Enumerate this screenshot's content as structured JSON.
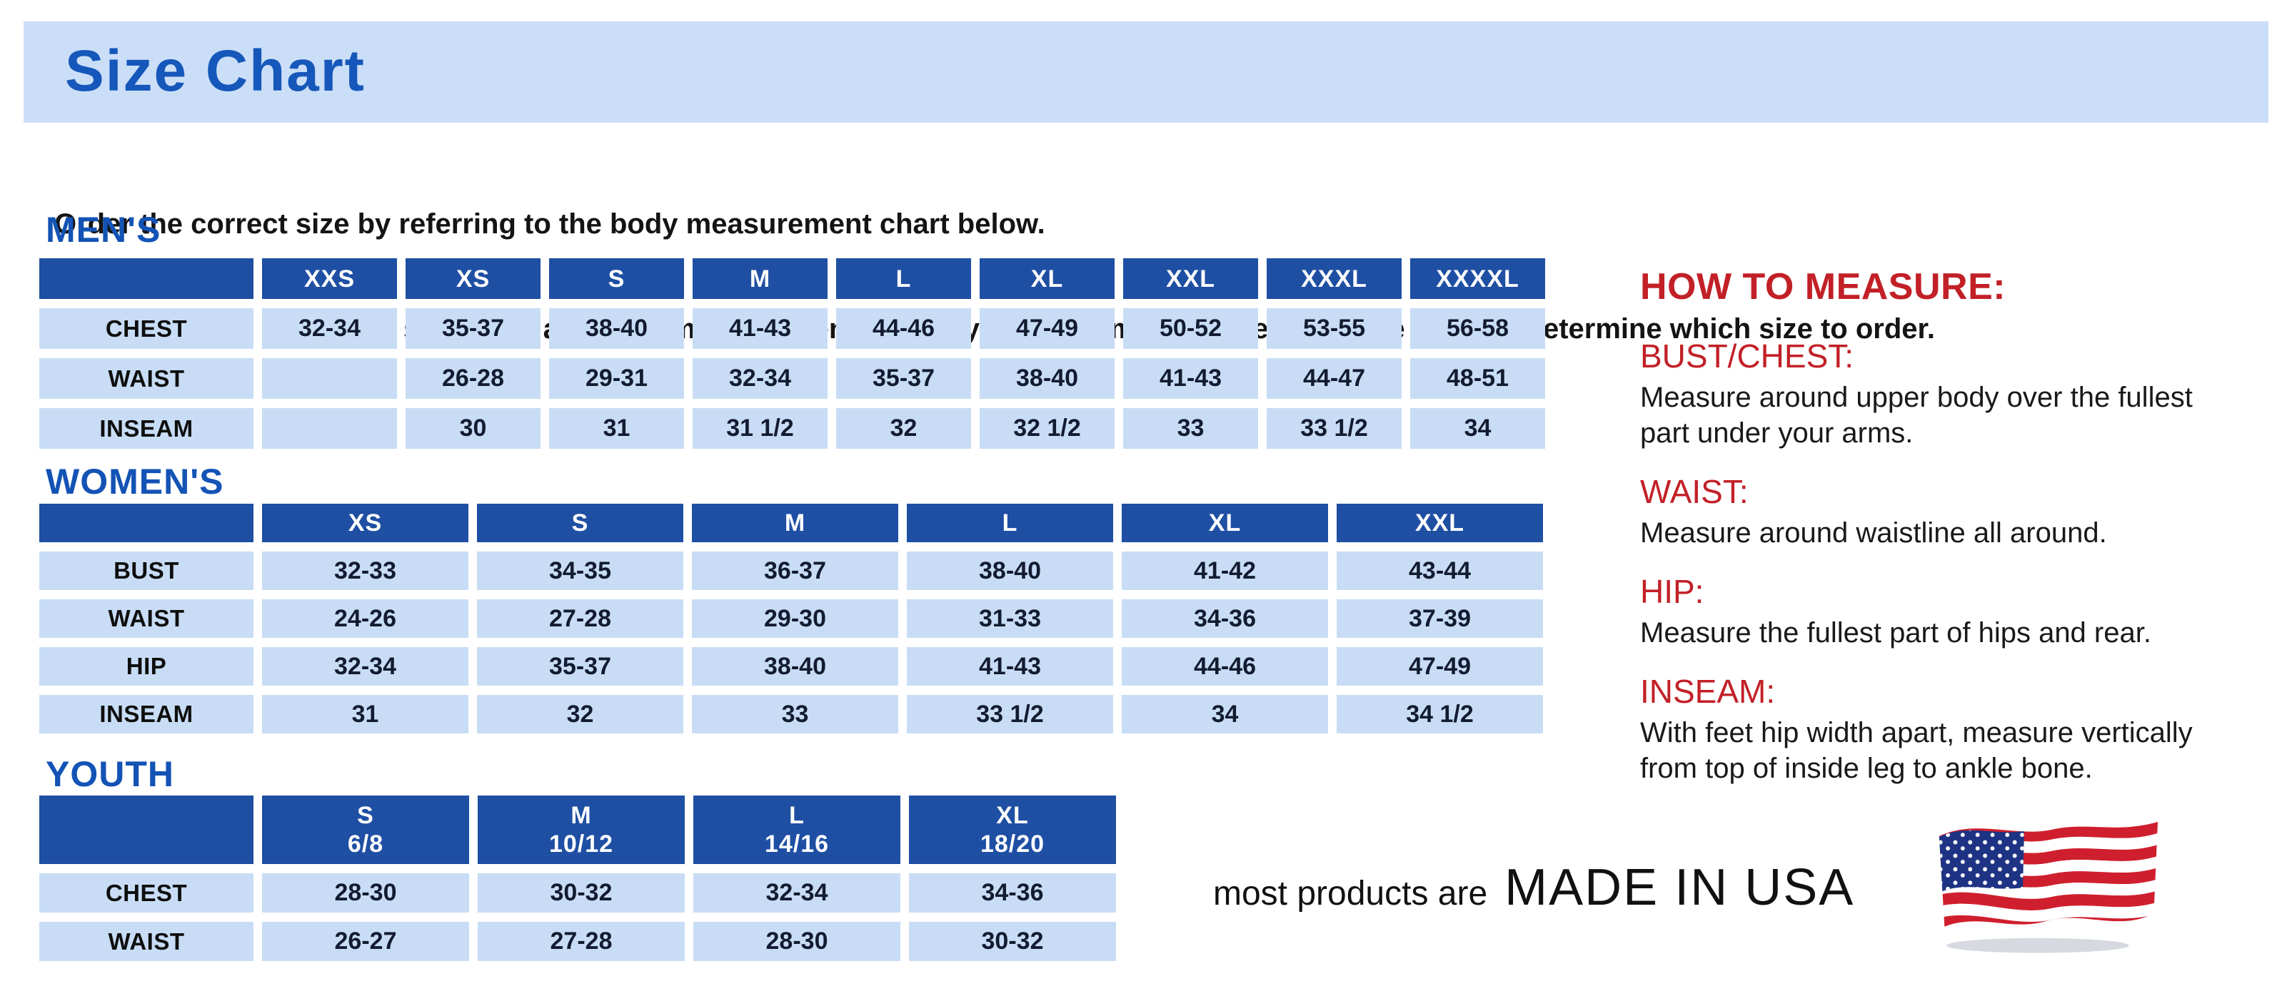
{
  "page": {
    "title": "Size Chart",
    "intro_line1": "Order the correct size by referring to the body measurement chart below.",
    "intro_line2": "Measurements shown on size chart are body measurements.  Find your body measurements on the chart to determine which size to order."
  },
  "colors": {
    "banner_background": "#cadef7",
    "title_blue": "#1557ba",
    "section_heading_blue": "#1353b5",
    "table_header_blue": "#1e4fa3",
    "table_cell_blue": "#c8ddf5",
    "measure_red": "#c22027",
    "flag_red": "#cf1f2e",
    "flag_blue": "#1e3383"
  },
  "tables": {
    "mens": {
      "heading": "MEN'S",
      "columns": [
        "XXS",
        "XS",
        "S",
        "M",
        "L",
        "XL",
        "XXL",
        "XXXL",
        "XXXXL"
      ],
      "rows": [
        {
          "label": "CHEST",
          "values": [
            "32-34",
            "35-37",
            "38-40",
            "41-43",
            "44-46",
            "47-49",
            "50-52",
            "53-55",
            "56-58"
          ]
        },
        {
          "label": "WAIST",
          "values": [
            "",
            "26-28",
            "29-31",
            "32-34",
            "35-37",
            "38-40",
            "41-43",
            "44-47",
            "48-51"
          ]
        },
        {
          "label": "INSEAM",
          "values": [
            "",
            "30",
            "31",
            "31 1/2",
            "32",
            "32 1/2",
            "33",
            "33 1/2",
            "34"
          ]
        }
      ]
    },
    "womens": {
      "heading": "WOMEN'S",
      "columns": [
        "XS",
        "S",
        "M",
        "L",
        "XL",
        "XXL"
      ],
      "rows": [
        {
          "label": "BUST",
          "values": [
            "32-33",
            "34-35",
            "36-37",
            "38-40",
            "41-42",
            "43-44"
          ]
        },
        {
          "label": "WAIST",
          "values": [
            "24-26",
            "27-28",
            "29-30",
            "31-33",
            "34-36",
            "37-39"
          ]
        },
        {
          "label": "HIP",
          "values": [
            "32-34",
            "35-37",
            "38-40",
            "41-43",
            "44-46",
            "47-49"
          ]
        },
        {
          "label": "INSEAM",
          "values": [
            "31",
            "32",
            "33",
            "33 1/2",
            "34",
            "34 1/2"
          ]
        }
      ]
    },
    "youth": {
      "heading": "YOUTH",
      "columns": [
        {
          "line1": "S",
          "line2": "6/8"
        },
        {
          "line1": "M",
          "line2": "10/12"
        },
        {
          "line1": "L",
          "line2": "14/16"
        },
        {
          "line1": "XL",
          "line2": "18/20"
        }
      ],
      "rows": [
        {
          "label": "CHEST",
          "values": [
            "28-30",
            "30-32",
            "32-34",
            "34-36"
          ]
        },
        {
          "label": "WAIST",
          "values": [
            "26-27",
            "27-28",
            "28-30",
            "30-32"
          ]
        }
      ]
    }
  },
  "how_to_measure": {
    "heading": "HOW TO MEASURE:",
    "sections": [
      {
        "term": "BUST/CHEST:",
        "description": "Measure around upper body over the fullest part under your arms."
      },
      {
        "term": "WAIST:",
        "description": "Measure around waistline all around."
      },
      {
        "term": "HIP:",
        "description": "Measure the fullest part of hips and rear."
      },
      {
        "term": "INSEAM:",
        "description": "With feet hip width apart, measure vertically from top of inside leg to ankle bone."
      }
    ]
  },
  "footer": {
    "prefix": "most products are",
    "made_in": "MADE IN USA",
    "flag_icon": "usa-flag-icon"
  }
}
